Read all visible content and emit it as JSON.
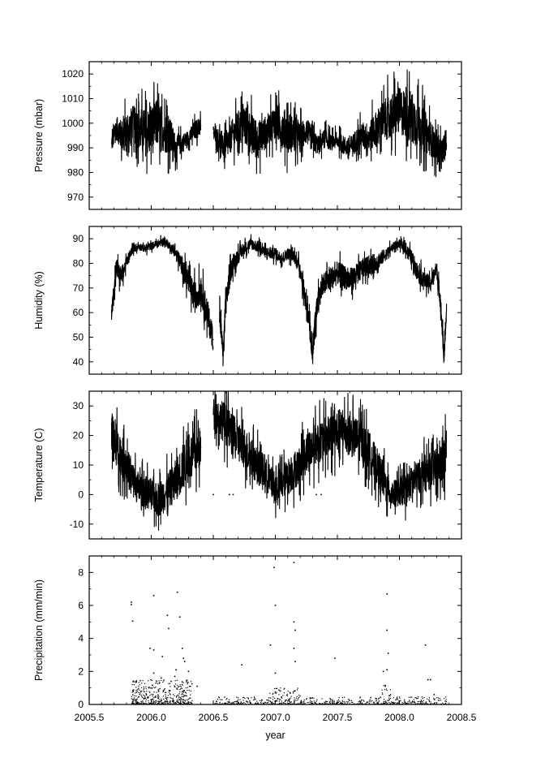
{
  "chart_data": [
    {
      "type": "line",
      "id": "pressure",
      "ylabel": "Pressure (mbar)",
      "ylim": [
        965,
        1025
      ],
      "yticks": [
        970,
        980,
        990,
        1000,
        1010,
        1020
      ],
      "xlim": [
        2005.5,
        2008.5
      ],
      "xticks": [
        2005.5,
        2006.0,
        2006.5,
        2007.0,
        2007.5,
        2008.0,
        2008.5
      ],
      "grid": false,
      "series": [
        {
          "x": [
            2005.68,
            2005.72,
            2005.76,
            2005.8,
            2005.85,
            2005.9,
            2005.95,
            2006.0,
            2006.05,
            2006.1,
            2006.15,
            2006.2,
            2006.25,
            2006.3,
            2006.35,
            2006.4,
            2006.45,
            2006.5,
            2006.55,
            2006.6,
            2006.65,
            2006.7,
            2006.75,
            2006.8,
            2006.85,
            2006.9,
            2006.95,
            2007.0,
            2007.05,
            2007.1,
            2007.15,
            2007.2,
            2007.25,
            2007.3,
            2007.35,
            2007.4,
            2007.45,
            2007.5,
            2007.55,
            2007.6,
            2007.65,
            2007.7,
            2007.75,
            2007.8,
            2007.85,
            2007.9,
            2007.95,
            2008.0,
            2008.05,
            2008.1,
            2008.15,
            2008.2,
            2008.25,
            2008.3,
            2008.35,
            2008.38
          ],
          "values": [
            992,
            998,
            995,
            996,
            1000,
            998,
            996,
            997,
            1000,
            997,
            995,
            990,
            992,
            994,
            997,
            999,
            null,
            996,
            993,
            990,
            995,
            998,
            1000,
            996,
            993,
            995,
            998,
            1001,
            998,
            997,
            995,
            994,
            997,
            993,
            991,
            994,
            992,
            993,
            991,
            990,
            993,
            995,
            994,
            997,
            1000,
            1002,
            1003,
            1005,
            1004,
            1002,
            1000,
            997,
            994,
            990,
            989,
            991
          ],
          "spread": [
            5,
            6,
            8,
            10,
            9,
            11,
            12,
            13,
            12,
            11,
            10,
            6,
            5,
            4,
            5,
            5,
            null,
            4,
            6,
            7,
            8,
            9,
            10,
            11,
            10,
            9,
            8,
            9,
            10,
            11,
            9,
            8,
            7,
            6,
            5,
            5,
            4,
            4,
            5,
            5,
            6,
            7,
            8,
            9,
            10,
            11,
            12,
            12,
            13,
            14,
            12,
            11,
            9,
            8,
            6,
            4
          ]
        }
      ]
    },
    {
      "type": "line",
      "id": "humidity",
      "ylabel": "Humidity (%)",
      "ylim": [
        35,
        95
      ],
      "yticks": [
        40,
        50,
        60,
        70,
        80,
        90
      ],
      "xlim": [
        2005.5,
        2008.5
      ],
      "xticks": [
        2005.5,
        2006.0,
        2006.5,
        2007.0,
        2007.5,
        2008.0,
        2008.5
      ],
      "grid": false,
      "series": [
        {
          "x": [
            2005.68,
            2005.7,
            2005.72,
            2005.75,
            2005.8,
            2005.85,
            2005.9,
            2005.95,
            2006.0,
            2006.05,
            2006.1,
            2006.15,
            2006.2,
            2006.25,
            2006.3,
            2006.35,
            2006.4,
            2006.45,
            2006.5,
            2006.52,
            2006.55,
            2006.58,
            2006.6,
            2006.65,
            2006.7,
            2006.75,
            2006.8,
            2006.85,
            2006.9,
            2006.95,
            2007.0,
            2007.05,
            2007.1,
            2007.15,
            2007.2,
            2007.25,
            2007.28,
            2007.3,
            2007.32,
            2007.35,
            2007.4,
            2007.45,
            2007.5,
            2007.55,
            2007.6,
            2007.65,
            2007.7,
            2007.75,
            2007.8,
            2007.85,
            2007.9,
            2007.95,
            2008.0,
            2008.05,
            2008.1,
            2008.15,
            2008.2,
            2008.25,
            2008.3,
            2008.33,
            2008.36,
            2008.38
          ],
          "values": [
            60,
            68,
            80,
            74,
            80,
            86,
            87,
            86,
            87,
            88,
            89,
            87,
            84,
            79,
            72,
            66,
            70,
            60,
            49,
            null,
            60,
            43,
            65,
            79,
            83,
            86,
            88,
            87,
            85,
            84,
            84,
            82,
            84,
            83,
            78,
            63,
            52,
            43,
            56,
            67,
            72,
            74,
            76,
            75,
            73,
            75,
            78,
            79,
            80,
            82,
            84,
            87,
            88,
            86,
            82,
            76,
            73,
            72,
            78,
            65,
            42,
            61
          ],
          "spread": [
            3,
            4,
            5,
            5,
            3,
            2,
            2,
            2,
            2,
            2,
            2,
            2,
            3,
            5,
            6,
            8,
            7,
            8,
            6,
            null,
            8,
            4,
            7,
            5,
            4,
            3,
            3,
            3,
            3,
            3,
            3,
            3,
            3,
            3,
            4,
            6,
            6,
            4,
            6,
            6,
            6,
            6,
            6,
            6,
            6,
            6,
            5,
            5,
            5,
            4,
            3,
            2,
            2,
            3,
            4,
            5,
            4,
            4,
            4,
            5,
            4,
            3
          ]
        }
      ]
    },
    {
      "type": "line",
      "id": "temperature",
      "ylabel": "Temperature (C)",
      "ylim": [
        -15,
        35
      ],
      "yticks": [
        -10,
        0,
        10,
        20,
        30
      ],
      "xlim": [
        2005.5,
        2008.5
      ],
      "xticks": [
        2005.5,
        2006.0,
        2006.5,
        2007.0,
        2007.5,
        2008.0,
        2008.5
      ],
      "grid": false,
      "series": [
        {
          "x": [
            2005.68,
            2005.7,
            2005.75,
            2005.8,
            2005.85,
            2005.9,
            2005.95,
            2006.0,
            2006.05,
            2006.1,
            2006.15,
            2006.2,
            2006.25,
            2006.3,
            2006.35,
            2006.4,
            2006.45,
            2006.5,
            2006.55,
            2006.6,
            2006.65,
            2006.7,
            2006.75,
            2006.8,
            2006.85,
            2006.9,
            2006.95,
            2007.0,
            2007.05,
            2007.1,
            2007.15,
            2007.2,
            2007.25,
            2007.3,
            2007.35,
            2007.4,
            2007.45,
            2007.5,
            2007.55,
            2007.6,
            2007.65,
            2007.7,
            2007.75,
            2007.8,
            2007.85,
            2007.9,
            2007.95,
            2008.0,
            2008.05,
            2008.1,
            2008.15,
            2008.2,
            2008.25,
            2008.3,
            2008.35,
            2008.38
          ],
          "values": [
            22,
            18,
            14,
            10,
            5,
            2,
            1,
            0,
            -2,
            0,
            2,
            5,
            9,
            12,
            14,
            16,
            null,
            28,
            26,
            24,
            20,
            18,
            16,
            13,
            10,
            8,
            5,
            2,
            4,
            6,
            8,
            10,
            14,
            16,
            18,
            19,
            20,
            21,
            22,
            20,
            19,
            18,
            15,
            11,
            7,
            2,
            0,
            1,
            2,
            4,
            6,
            7,
            8,
            9,
            11,
            14
          ],
          "spread": [
            8,
            9,
            9,
            8,
            8,
            7,
            7,
            7,
            7,
            8,
            8,
            9,
            10,
            10,
            10,
            9,
            null,
            6,
            8,
            9,
            9,
            9,
            9,
            8,
            8,
            8,
            7,
            7,
            7,
            8,
            8,
            8,
            9,
            9,
            9,
            9,
            9,
            10,
            9,
            9,
            9,
            9,
            9,
            8,
            8,
            7,
            6,
            6,
            7,
            7,
            7,
            8,
            8,
            8,
            9,
            9
          ]
        }
      ],
      "outlier_points": {
        "x": [
          2005.98,
          2006.5,
          2006.63,
          2006.66,
          2007.33,
          2007.37
        ],
        "y": [
          0,
          0,
          0,
          0,
          0,
          0
        ]
      }
    },
    {
      "type": "scatter",
      "id": "precipitation",
      "ylabel": "Precipitation (mm/min)",
      "xlabel": "year",
      "ylim": [
        0,
        9
      ],
      "yticks": [
        0,
        2,
        4,
        6,
        8
      ],
      "xlim": [
        2005.5,
        2008.5
      ],
      "xticks": [
        2005.5,
        2006.0,
        2006.5,
        2007.0,
        2007.5,
        2008.0,
        2008.5
      ],
      "xtick_labels": [
        "2005.5",
        "2006.0",
        "2006.5",
        "2007.0",
        "2007.5",
        "2008.0",
        "2008.5"
      ],
      "grid": false,
      "notable_points": {
        "x": [
          2005.84,
          2005.84,
          2005.85,
          2005.99,
          2006.02,
          2006.02,
          2006.09,
          2006.14,
          2006.21,
          2006.23,
          2006.25,
          2006.26,
          2006.27,
          2006.3,
          2006.02,
          2006.08,
          2006.16,
          2006.19,
          2006.2,
          2006.13,
          2006.06,
          2006.37,
          2006.73,
          2006.96,
          2006.99,
          2007.0,
          2007.0,
          2007.15,
          2007.15,
          2007.16,
          2007.15,
          2007.16,
          2007.48,
          2007.87,
          2007.9,
          2007.9,
          2007.91,
          2007.9,
          2008.21,
          2008.23,
          2008.25,
          2008.28
        ],
        "y": [
          6.2,
          6.05,
          5.05,
          3.4,
          6.6,
          3.3,
          2.9,
          4.6,
          6.8,
          5.3,
          3.4,
          2.8,
          2.6,
          2.0,
          1.9,
          1.6,
          1.4,
          1.7,
          2.1,
          5.4,
          0.8,
          1.1,
          2.4,
          3.6,
          8.3,
          6.0,
          1.9,
          8.6,
          5.0,
          4.5,
          3.4,
          2.6,
          2.8,
          2.0,
          6.7,
          4.5,
          3.1,
          2.1,
          3.6,
          1.5,
          1.5,
          0.6
        ]
      },
      "base_noise": {
        "x_start": 2005.84,
        "x_end": 2008.38,
        "gaps": [
          [
            2006.45,
            2006.5
          ]
        ],
        "bursts": [
          {
            "x": [
              2005.84,
              2006.33
            ],
            "max": 1.5,
            "density": 18
          },
          {
            "x": [
              2006.5,
              2006.95
            ],
            "max": 0.5,
            "density": 6
          },
          {
            "x": [
              2006.95,
              2007.2
            ],
            "max": 1.0,
            "density": 10
          },
          {
            "x": [
              2007.2,
              2007.85
            ],
            "max": 0.45,
            "density": 6
          },
          {
            "x": [
              2007.85,
              2007.93
            ],
            "max": 1.2,
            "density": 12
          },
          {
            "x": [
              2007.93,
              2008.38
            ],
            "max": 0.5,
            "density": 7
          }
        ]
      }
    }
  ]
}
